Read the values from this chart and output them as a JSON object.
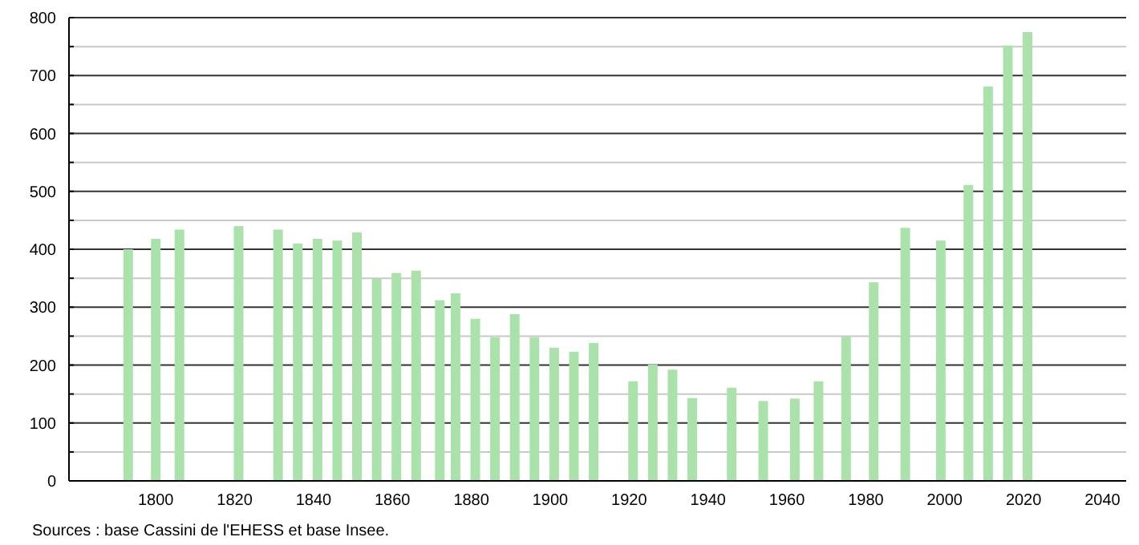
{
  "chart_data": {
    "type": "bar",
    "x": [
      1793,
      1800,
      1806,
      1821,
      1831,
      1836,
      1841,
      1846,
      1851,
      1856,
      1861,
      1866,
      1872,
      1876,
      1881,
      1886,
      1891,
      1896,
      1901,
      1906,
      1911,
      1921,
      1926,
      1931,
      1936,
      1946,
      1954,
      1962,
      1968,
      1975,
      1982,
      1990,
      1999,
      2006,
      2011,
      2016,
      2021
    ],
    "values": [
      400,
      418,
      434,
      440,
      434,
      410,
      418,
      415,
      429,
      349,
      359,
      363,
      312,
      324,
      280,
      248,
      288,
      248,
      230,
      223,
      238,
      172,
      201,
      192,
      143,
      161,
      138,
      142,
      172,
      249,
      343,
      437,
      415,
      511,
      681,
      752,
      775
    ],
    "color": "#abe2ab",
    "xlim": [
      1778,
      2046
    ],
    "xticks": [
      1800,
      1820,
      1840,
      1860,
      1880,
      1900,
      1920,
      1940,
      1960,
      1980,
      2000,
      2020,
      2040
    ],
    "ylim": [
      0,
      800
    ],
    "yticks": [
      0,
      {
        "value": 50,
        "label": null
      },
      100,
      {
        "value": 150,
        "label": null
      },
      200,
      {
        "value": 250,
        "label": null
      },
      300,
      {
        "value": 350,
        "label": null
      },
      400,
      {
        "value": 450,
        "label": null
      },
      500,
      {
        "value": 550,
        "label": null
      },
      600,
      {
        "value": 650,
        "label": null
      },
      700,
      {
        "value": 750,
        "label": null
      },
      800
    ],
    "grid": "y",
    "annotations": [
      "Sources : base Cassini de l'EHESS et base Insee."
    ]
  }
}
